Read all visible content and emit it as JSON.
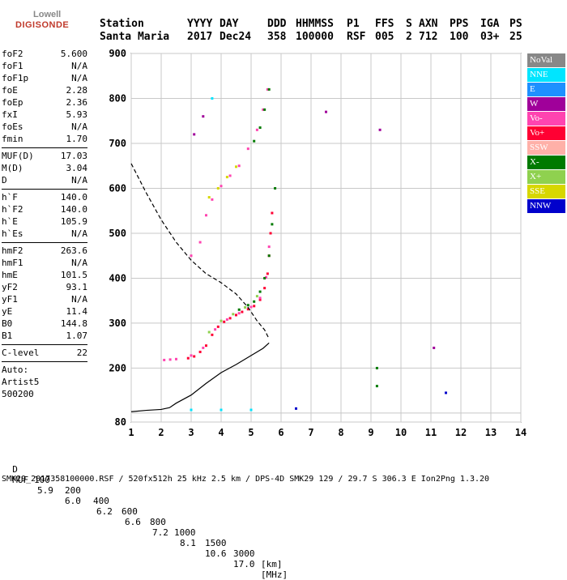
{
  "logo": {
    "line1": "Lowell",
    "line2": "DIGISONDE"
  },
  "header": {
    "row1": [
      "Station",
      "YYYY",
      "DAY",
      "DDD",
      "HHMMSS",
      "P1",
      "FFS",
      "S",
      "AXN",
      "PPS",
      "IGA",
      "PS"
    ],
    "row2": [
      "Santa Maria",
      "2017",
      "Dec24",
      "358",
      "100000",
      "RSF",
      "005",
      "2",
      "712",
      "100",
      "03+",
      "25"
    ]
  },
  "params": {
    "group1": [
      [
        "foF2",
        "5.600"
      ],
      [
        "foF1",
        "N/A"
      ],
      [
        "foF1p",
        "N/A"
      ],
      [
        "foE",
        "2.28"
      ],
      [
        "foEp",
        "2.36"
      ],
      [
        "fxI",
        "5.93"
      ],
      [
        "foEs",
        "N/A"
      ],
      [
        "fmin",
        "1.70"
      ]
    ],
    "group2": [
      [
        "MUF(D)",
        "17.03"
      ],
      [
        "M(D)",
        "3.04"
      ],
      [
        "D",
        "N/A"
      ]
    ],
    "group3": [
      [
        "h`F",
        "140.0"
      ],
      [
        "h`F2",
        "140.0"
      ],
      [
        "h`E",
        "105.9"
      ],
      [
        "h`Es",
        "N/A"
      ]
    ],
    "group4": [
      [
        "hmF2",
        "263.6"
      ],
      [
        "hmF1",
        "N/A"
      ],
      [
        "hmE",
        "101.5"
      ],
      [
        "yF2",
        "93.1"
      ],
      [
        "yF1",
        "N/A"
      ],
      [
        "yE",
        "11.4"
      ],
      [
        "B0",
        "144.8"
      ],
      [
        "B1",
        "1.07"
      ]
    ],
    "group5": [
      [
        "C-level",
        "22"
      ]
    ],
    "auto": [
      "Auto:",
      "Artist5",
      "500200"
    ]
  },
  "legend": [
    {
      "label": "NoVal",
      "color": "#888888"
    },
    {
      "label": "NNE",
      "color": "#00e5ff"
    },
    {
      "label": "E",
      "color": "#1e90ff"
    },
    {
      "label": "W",
      "color": "#a0009a"
    },
    {
      "label": "Vo-",
      "color": "#ff44b0"
    },
    {
      "label": "Vo+",
      "color": "#ff0033"
    },
    {
      "label": "SSW",
      "color": "#ffb0a8"
    },
    {
      "label": "X-",
      "color": "#007a00"
    },
    {
      "label": "X+",
      "color": "#8fd14f"
    },
    {
      "label": "SSE",
      "color": "#d7d700"
    },
    {
      "label": "NNW",
      "color": "#0000cc"
    }
  ],
  "muf_table": {
    "d_label": "D",
    "d_values": [
      "100",
      "200",
      "400",
      "600",
      "800",
      "1000",
      "1500",
      "3000"
    ],
    "d_unit": "[km]",
    "muf_label": "MUF",
    "muf_values": [
      "5.9",
      "6.0",
      "6.2",
      "6.6",
      "7.2",
      "8.1",
      "10.6",
      "17.0"
    ],
    "muf_unit": "[MHz]"
  },
  "footer": "SMK29_2017358100000.RSF / 520fx512h 25 kHz 2.5 km / DPS-4D SMK29 129 / 29.7 S 306.3 E Ion2Png 1.3.20",
  "chart_data": {
    "type": "scatter",
    "xlim": [
      1,
      14
    ],
    "ylim": [
      80,
      900
    ],
    "xticks": [
      1,
      2,
      3,
      4,
      5,
      6,
      7,
      8,
      9,
      10,
      11,
      12,
      13,
      14
    ],
    "yticks": [
      80,
      100,
      200,
      300,
      400,
      500,
      600,
      700,
      800,
      900
    ],
    "ytick_labels": [
      {
        "v": 80,
        "t": "80"
      },
      {
        "v": 200,
        "t": "200"
      },
      {
        "v": 300,
        "t": "300"
      },
      {
        "v": 400,
        "t": "400"
      },
      {
        "v": 500,
        "t": "500"
      },
      {
        "v": 600,
        "t": "600"
      },
      {
        "v": 700,
        "t": "700"
      },
      {
        "v": 800,
        "t": "800"
      },
      {
        "v": 900,
        "t": "900"
      }
    ],
    "grid": true,
    "series": [
      {
        "name": "Vo+",
        "color": "#ff0033",
        "points": [
          [
            2.9,
            222
          ],
          [
            3.1,
            226
          ],
          [
            3.3,
            236
          ],
          [
            3.5,
            250
          ],
          [
            3.7,
            274
          ],
          [
            3.9,
            292
          ],
          [
            4.1,
            303
          ],
          [
            4.3,
            311
          ],
          [
            4.5,
            318
          ],
          [
            4.7,
            325
          ],
          [
            4.9,
            331
          ],
          [
            5.1,
            338
          ],
          [
            5.3,
            352
          ],
          [
            5.45,
            378
          ],
          [
            5.55,
            410
          ],
          [
            5.6,
            450
          ],
          [
            5.65,
            500
          ],
          [
            5.7,
            545
          ]
        ]
      },
      {
        "name": "Vo-",
        "color": "#ff44b0",
        "points": [
          [
            3.0,
            228
          ],
          [
            3.4,
            245
          ],
          [
            3.8,
            286
          ],
          [
            4.2,
            308
          ],
          [
            4.6,
            322
          ],
          [
            5.0,
            336
          ],
          [
            5.3,
            356
          ],
          [
            5.5,
            402
          ],
          [
            5.6,
            470
          ],
          [
            3.0,
            450
          ],
          [
            3.3,
            480
          ],
          [
            3.5,
            540
          ],
          [
            3.7,
            575
          ],
          [
            4.0,
            605
          ],
          [
            4.3,
            628
          ],
          [
            4.6,
            650
          ],
          [
            4.9,
            688
          ],
          [
            5.2,
            730
          ],
          [
            5.4,
            775
          ],
          [
            5.55,
            820
          ],
          [
            2.1,
            218
          ],
          [
            2.3,
            219
          ],
          [
            2.5,
            220
          ]
        ]
      },
      {
        "name": "X-",
        "color": "#007a00",
        "points": [
          [
            4.6,
            330
          ],
          [
            4.9,
            340
          ],
          [
            5.1,
            348
          ],
          [
            5.3,
            370
          ],
          [
            5.45,
            400
          ],
          [
            5.6,
            450
          ],
          [
            5.7,
            520
          ],
          [
            5.8,
            600
          ],
          [
            5.1,
            705
          ],
          [
            5.3,
            735
          ],
          [
            5.45,
            775
          ],
          [
            5.6,
            820
          ],
          [
            9.2,
            160
          ],
          [
            9.2,
            200
          ]
        ]
      },
      {
        "name": "X+",
        "color": "#8fd14f",
        "points": [
          [
            3.6,
            280
          ],
          [
            4.0,
            305
          ],
          [
            4.4,
            320
          ],
          [
            4.8,
            335
          ],
          [
            5.2,
            360
          ]
        ]
      },
      {
        "name": "SSE",
        "color": "#d7d700",
        "points": [
          [
            3.6,
            580
          ],
          [
            3.9,
            600
          ],
          [
            4.2,
            625
          ],
          [
            4.5,
            648
          ]
        ]
      },
      {
        "name": "W",
        "color": "#a0009a",
        "points": [
          [
            3.1,
            720
          ],
          [
            3.4,
            760
          ],
          [
            7.5,
            770
          ],
          [
            9.3,
            730
          ],
          [
            11.1,
            245
          ]
        ]
      },
      {
        "name": "NNE",
        "color": "#00e5ff",
        "points": [
          [
            3.0,
            107
          ],
          [
            4.0,
            107
          ],
          [
            5.0,
            107
          ],
          [
            3.7,
            800
          ]
        ]
      },
      {
        "name": "NNW",
        "color": "#0000cc",
        "points": [
          [
            6.5,
            110
          ],
          [
            11.5,
            145
          ]
        ]
      }
    ],
    "profile": [
      [
        1,
        103
      ],
      [
        1.5,
        106
      ],
      [
        2.0,
        108
      ],
      [
        2.28,
        112
      ],
      [
        2.5,
        122
      ],
      [
        3.0,
        140
      ],
      [
        3.5,
        166
      ],
      [
        4.0,
        190
      ],
      [
        4.5,
        208
      ],
      [
        5.0,
        228
      ],
      [
        5.4,
        244
      ],
      [
        5.6,
        256
      ]
    ],
    "muf_curve": [
      [
        1,
        655
      ],
      [
        1.5,
        590
      ],
      [
        2.0,
        530
      ],
      [
        2.5,
        480
      ],
      [
        3.0,
        440
      ],
      [
        3.5,
        410
      ],
      [
        4.0,
        390
      ],
      [
        4.5,
        365
      ],
      [
        4.9,
        335
      ],
      [
        5.2,
        305
      ],
      [
        5.45,
        285
      ],
      [
        5.6,
        265
      ]
    ]
  }
}
